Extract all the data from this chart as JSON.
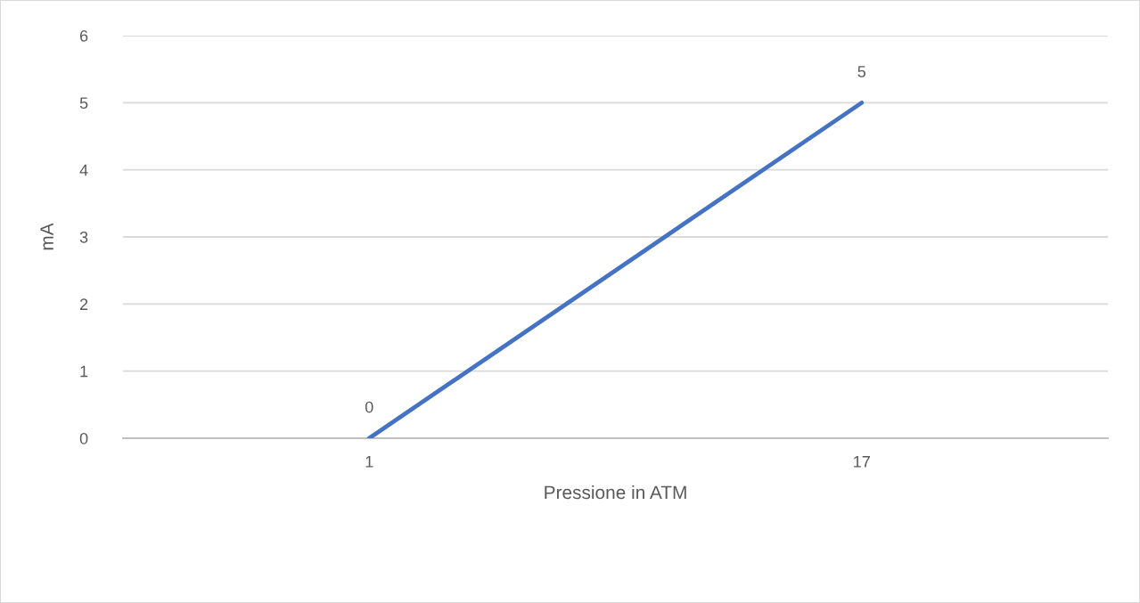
{
  "chart_data": {
    "type": "line",
    "xlabel": "Pressione in ATM",
    "ylabel": "mA",
    "categories": [
      "1",
      "17"
    ],
    "series": [
      {
        "color": "#4472c4",
        "values": [
          0,
          5
        ]
      }
    ],
    "ylim": [
      0,
      6
    ],
    "yticks": [
      0,
      1,
      2,
      3,
      4,
      5,
      6
    ],
    "grid": "y",
    "data_labels": true,
    "marker": "none",
    "line_style": "solid",
    "legend": false
  }
}
